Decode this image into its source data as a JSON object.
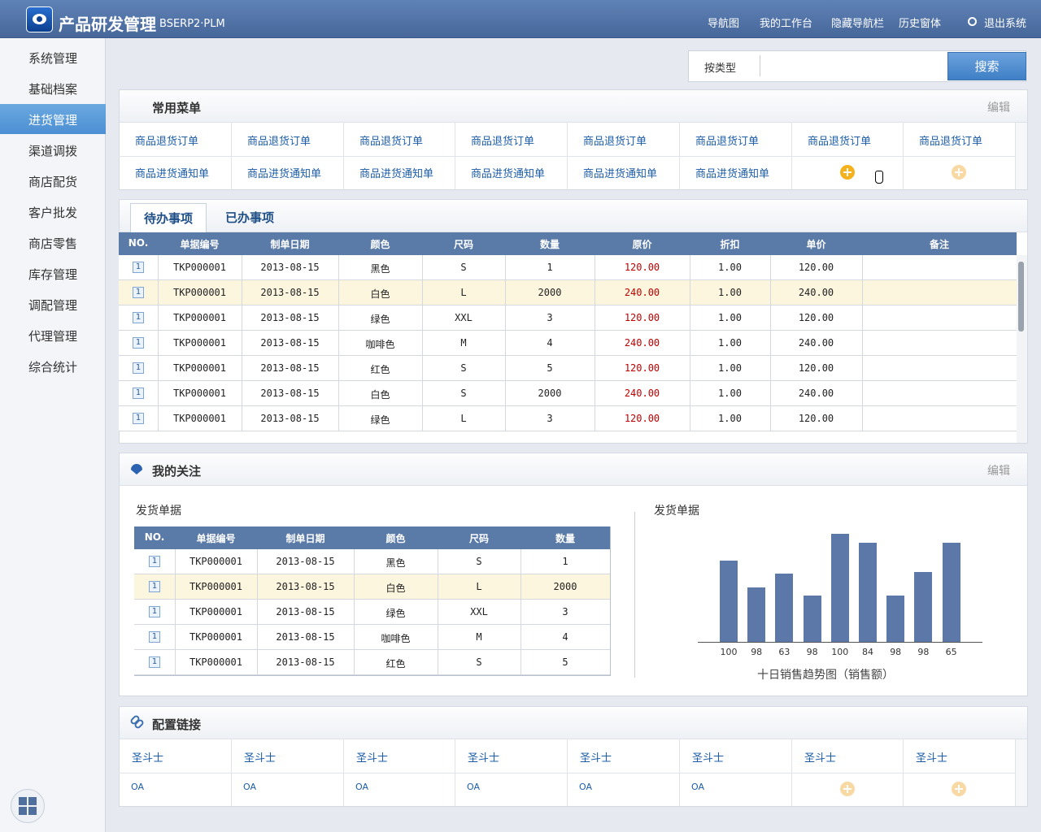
{
  "header": {
    "title": "产品研发管理",
    "subtitle": "BSERP2·PLM",
    "nav": [
      "导航图",
      "我的工作台",
      "隐藏导航栏",
      "历史窗体",
      "退出系统"
    ]
  },
  "sidebar": {
    "items": [
      "系统管理",
      "基础档案",
      "进货管理",
      "渠道调拨",
      "商店配货",
      "客户批发",
      "商店零售",
      "库存管理",
      "调配管理",
      "代理管理",
      "综合统计"
    ],
    "active": 2
  },
  "search": {
    "type": "按类型",
    "button": "搜索"
  },
  "favorites": {
    "title": "常用菜单",
    "edit": "编辑",
    "rows": [
      [
        "商品退货订单",
        "商品退货订单",
        "商品退货订单",
        "商品退货订单",
        "商品退货订单",
        "商品退货订单",
        "商品退货订单",
        "商品退货订单"
      ],
      [
        "商品进货通知单",
        "商品进货通知单",
        "商品进货通知单",
        "商品进货通知单",
        "商品进货通知单",
        "商品进货通知单"
      ]
    ]
  },
  "todo": {
    "tabs": [
      "待办事项",
      "已办事项"
    ],
    "active_tab": 0,
    "highlight_row": 1,
    "columns": [
      "NO.",
      "单据编号",
      "制单日期",
      "颜色",
      "尺码",
      "数量",
      "原价",
      "折扣",
      "单价",
      "备注"
    ],
    "rows": [
      [
        "1",
        "TKP000001",
        "2013-08-15",
        "黑色",
        "S",
        "1",
        "120.00",
        "1.00",
        "120.00"
      ],
      [
        "1",
        "TKP000001",
        "2013-08-15",
        "白色",
        "L",
        "2000",
        "240.00",
        "1.00",
        "240.00"
      ],
      [
        "1",
        "TKP000001",
        "2013-08-15",
        "绿色",
        "XXL",
        "3",
        "120.00",
        "1.00",
        "120.00"
      ],
      [
        "1",
        "TKP000001",
        "2013-08-15",
        "咖啡色",
        "M",
        "4",
        "240.00",
        "1.00",
        "240.00"
      ],
      [
        "1",
        "TKP000001",
        "2013-08-15",
        "红色",
        "S",
        "5",
        "120.00",
        "1.00",
        "120.00"
      ],
      [
        "1",
        "TKP000001",
        "2013-08-15",
        "白色",
        "S",
        "2000",
        "240.00",
        "1.00",
        "240.00"
      ],
      [
        "1",
        "TKP000001",
        "2013-08-15",
        "绿色",
        "L",
        "3",
        "120.00",
        "1.00",
        "120.00"
      ]
    ]
  },
  "follow": {
    "title": "我的关注",
    "edit": "编辑",
    "table_title": "发货单据",
    "highlight_row": 1,
    "columns": [
      "NO.",
      "单据编号",
      "制单日期",
      "颜色",
      "尺码",
      "数量"
    ],
    "rows": [
      [
        "1",
        "TKP000001",
        "2013-08-15",
        "黑色",
        "S",
        "1"
      ],
      [
        "1",
        "TKP000001",
        "2013-08-15",
        "白色",
        "L",
        "2000"
      ],
      [
        "1",
        "TKP000001",
        "2013-08-15",
        "绿色",
        "XXL",
        "3"
      ],
      [
        "1",
        "TKP000001",
        "2013-08-15",
        "咖啡色",
        "M",
        "4"
      ],
      [
        "1",
        "TKP000001",
        "2013-08-15",
        "红色",
        "S",
        "5"
      ]
    ],
    "chart": {
      "type": "bar",
      "title": "发货单据",
      "caption": "十日销售趋势图（销售额）",
      "color": "#5b78a8",
      "categories": [
        "100",
        "98",
        "63",
        "98",
        "100",
        "84",
        "98",
        "98",
        "65"
      ],
      "values": [
        100,
        67,
        84,
        57,
        133,
        122,
        57,
        86,
        122
      ]
    }
  },
  "links": {
    "title": "配置链接",
    "rows": [
      [
        "圣斗士",
        "圣斗士",
        "圣斗士",
        "圣斗士",
        "圣斗士",
        "圣斗士",
        "圣斗士",
        "圣斗士"
      ],
      [
        "OA",
        "OA",
        "OA",
        "OA",
        "OA",
        "OA"
      ]
    ]
  }
}
